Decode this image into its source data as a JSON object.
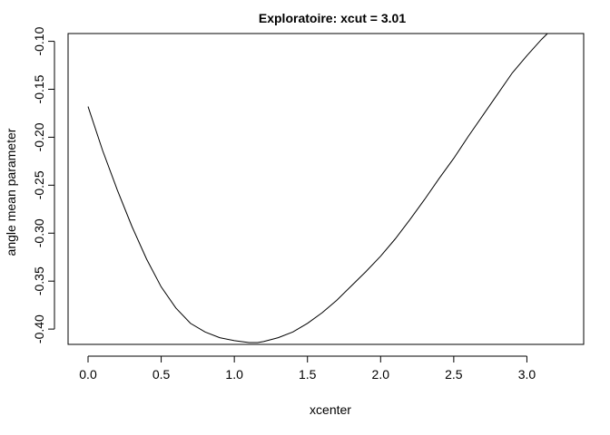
{
  "chart_data": {
    "type": "line",
    "title": "Exploratoire: xcut = 3.01",
    "xlabel": "xcenter",
    "ylabel": "angle mean parameter",
    "xlim": [
      0,
      3.14
    ],
    "ylim": [
      -0.415,
      -0.09
    ],
    "x_ticks": [
      0,
      0.5,
      1,
      1.5,
      2,
      2.5,
      3
    ],
    "x_tick_labels": [
      "0.0",
      "0.5",
      "1.0",
      "1.5",
      "2.0",
      "2.5",
      "3.0"
    ],
    "y_ticks": [
      -0.4,
      -0.35,
      -0.3,
      -0.25,
      -0.2,
      -0.15,
      -0.1
    ],
    "y_tick_labels": [
      "-0.40",
      "-0.35",
      "-0.30",
      "-0.25",
      "-0.20",
      "-0.15",
      "-0.10"
    ],
    "grid": false,
    "legend": "none",
    "line_color": "#000000",
    "series": [
      {
        "x": [
          0.0,
          0.1,
          0.2,
          0.3,
          0.4,
          0.5,
          0.6,
          0.7,
          0.8,
          0.9,
          1.0,
          1.1,
          1.16,
          1.2,
          1.3,
          1.4,
          1.5,
          1.6,
          1.7,
          1.8,
          1.9,
          2.0,
          2.1,
          2.2,
          2.3,
          2.4,
          2.5,
          2.6,
          2.7,
          2.8,
          2.9,
          3.0,
          3.1,
          3.14
        ],
        "y": [
          -0.168,
          -0.214,
          -0.255,
          -0.293,
          -0.327,
          -0.356,
          -0.378,
          -0.394,
          -0.403,
          -0.409,
          -0.412,
          -0.414,
          -0.414,
          -0.413,
          -0.409,
          -0.403,
          -0.394,
          -0.383,
          -0.37,
          -0.355,
          -0.34,
          -0.324,
          -0.306,
          -0.286,
          -0.265,
          -0.243,
          -0.222,
          -0.199,
          -0.177,
          -0.155,
          -0.133,
          -0.115,
          -0.098,
          -0.092
        ]
      }
    ]
  }
}
